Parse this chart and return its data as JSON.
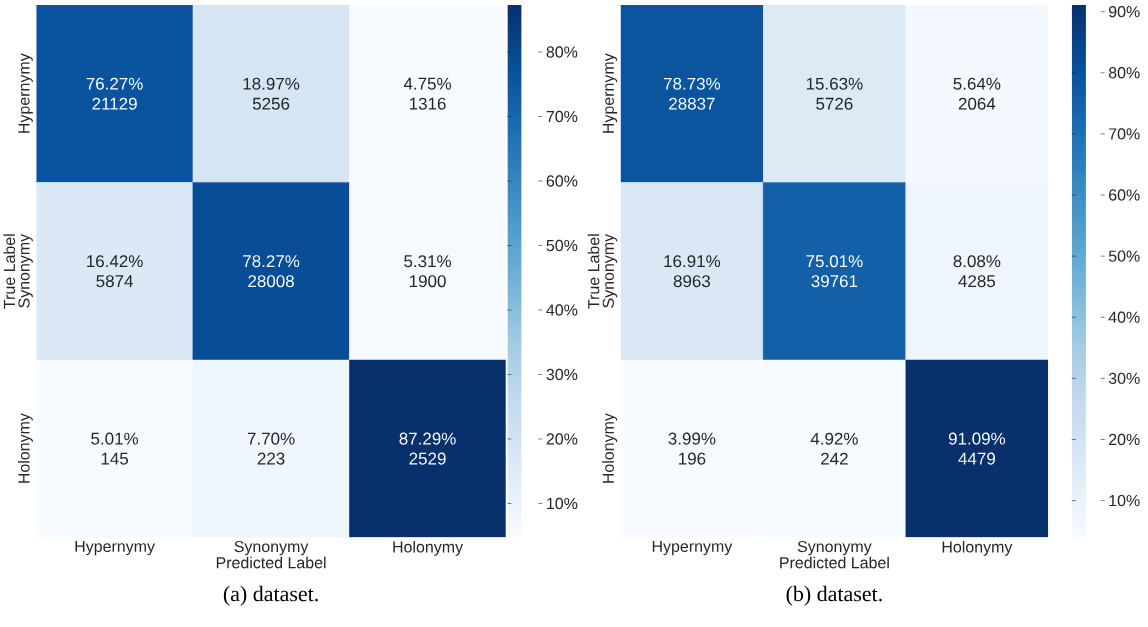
{
  "chart_data": [
    {
      "type": "heatmap",
      "categories": [
        "Hypernymy",
        "Synonymy",
        "Holonymy"
      ],
      "y_categories": [
        "Hypernymy",
        "Synonymy",
        "Holonymy"
      ],
      "xlabel": "Predicted Label",
      "ylabel": "True Label",
      "cells": [
        [
          76.27,
          18.97,
          4.75
        ],
        [
          16.42,
          78.27,
          5.31
        ],
        [
          5.01,
          7.7,
          87.29
        ]
      ],
      "cell_labels": [
        [
          "76.27% 21129",
          "18.97% 5256",
          "4.75% 1316"
        ],
        [
          "16.42% 5874",
          "78.27% 28008",
          "5.31% 1900"
        ],
        [
          "5.01% 145",
          "7.70% 223",
          "87.29% 2529"
        ]
      ],
      "clim": [
        4.75,
        87.29
      ],
      "cticks": [
        {
          "value": 10,
          "label": "10%"
        },
        {
          "value": 20,
          "label": "20%"
        },
        {
          "value": 30,
          "label": "30%"
        },
        {
          "value": 40,
          "label": "40%"
        },
        {
          "value": 50,
          "label": "50%"
        },
        {
          "value": 60,
          "label": "60%"
        },
        {
          "value": 70,
          "label": "70%"
        },
        {
          "value": 80,
          "label": "80%"
        }
      ],
      "annotations": [
        "(a) dataset."
      ]
    },
    {
      "type": "heatmap",
      "categories": [
        "Hypernymy",
        "Synonymy",
        "Holonymy"
      ],
      "y_categories": [
        "Hypernymy",
        "Synonymy",
        "Holonymy"
      ],
      "xlabel": "Predicted Label",
      "ylabel": "True Label",
      "cells": [
        [
          78.73,
          15.63,
          5.64
        ],
        [
          16.91,
          75.01,
          8.08
        ],
        [
          3.99,
          4.92,
          91.09
        ]
      ],
      "cell_labels": [
        [
          "78.73% 28837",
          "15.63% 5726",
          "5.64% 2064"
        ],
        [
          "16.91% 8963",
          "75.01% 39761",
          "8.08% 4285"
        ],
        [
          "3.99% 196",
          "4.92% 242",
          "91.09% 4479"
        ]
      ],
      "clim": [
        3.99,
        91.09
      ],
      "cticks": [
        {
          "value": 10,
          "label": "10%"
        },
        {
          "value": 20,
          "label": "20%"
        },
        {
          "value": 30,
          "label": "30%"
        },
        {
          "value": 40,
          "label": "40%"
        },
        {
          "value": 50,
          "label": "50%"
        },
        {
          "value": 60,
          "label": "60%"
        },
        {
          "value": 70,
          "label": "70%"
        },
        {
          "value": 80,
          "label": "80%"
        },
        {
          "value": 90,
          "label": "90%"
        }
      ],
      "annotations": [
        "(b) dataset."
      ]
    }
  ]
}
